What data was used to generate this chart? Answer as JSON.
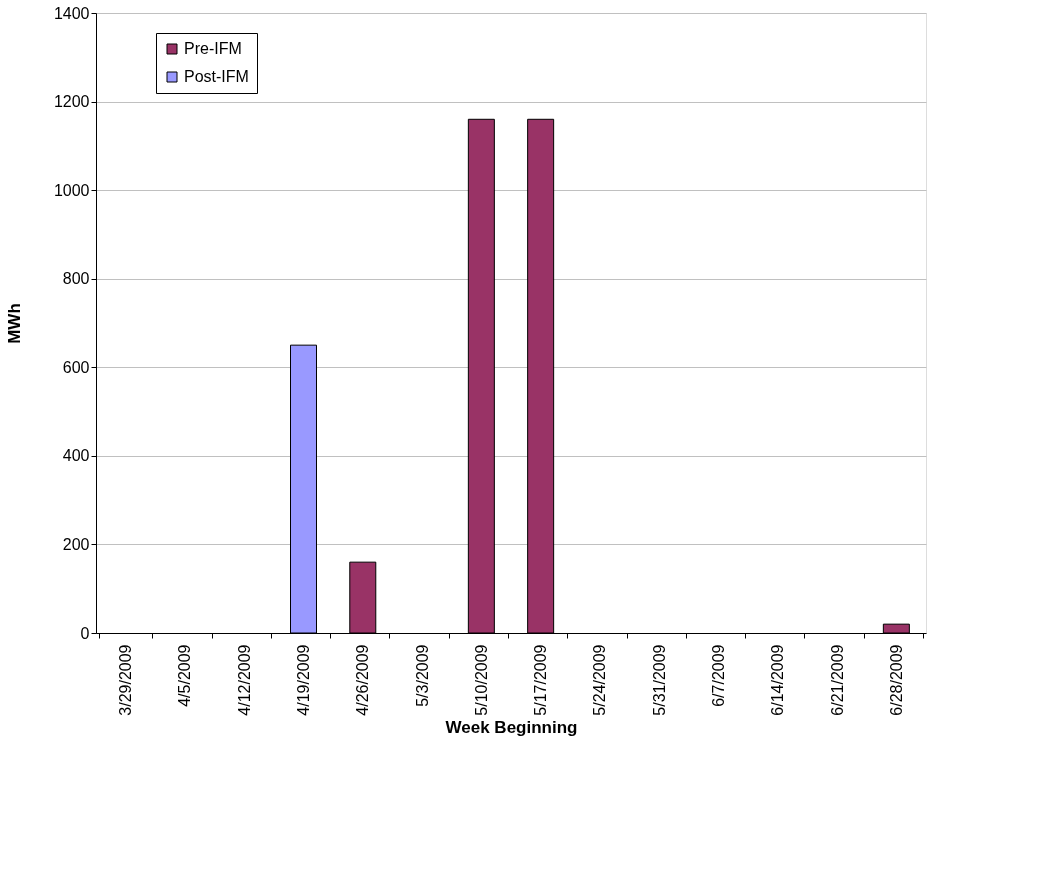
{
  "chart_data": {
    "type": "bar",
    "xlabel": "Week Beginning",
    "ylabel": "MWh",
    "categories": [
      "3/29/2009",
      "4/5/2009",
      "4/12/2009",
      "4/19/2009",
      "4/26/2009",
      "5/3/2009",
      "5/10/2009",
      "5/17/2009",
      "5/24/2009",
      "5/31/2009",
      "6/7/2009",
      "6/14/2009",
      "6/21/2009",
      "6/28/2009"
    ],
    "series": [
      {
        "name": "Pre-IFM",
        "color": "#993366",
        "values": [
          null,
          null,
          null,
          null,
          160,
          null,
          1160,
          1160,
          null,
          null,
          null,
          null,
          null,
          20
        ]
      },
      {
        "name": "Post-IFM",
        "color": "#9999ff",
        "values": [
          null,
          null,
          null,
          650,
          null,
          null,
          null,
          null,
          null,
          null,
          null,
          null,
          null,
          null
        ]
      }
    ],
    "ylim": [
      0,
      1400
    ],
    "yticks": [
      0,
      200,
      400,
      600,
      800,
      1000,
      1200,
      1400
    ],
    "grid": "y",
    "legend": "top left"
  }
}
